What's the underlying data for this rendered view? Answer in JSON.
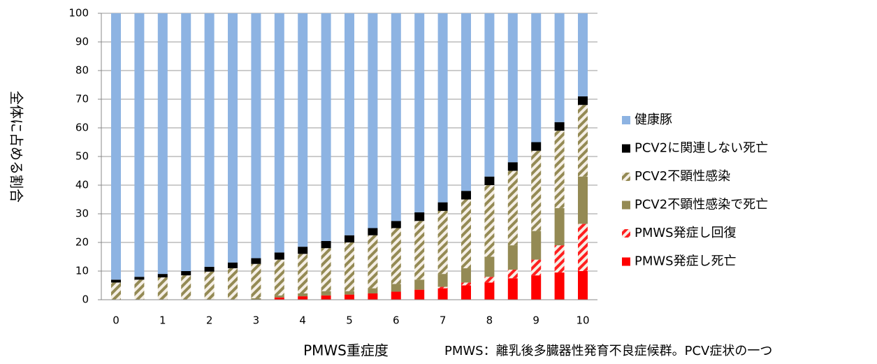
{
  "chart_data": {
    "type": "stacked_bar",
    "y_label": "全体に占める割合",
    "x_label": "PMWS重症度",
    "note": "PMWS：離乳後多臓器性発育不良症候群。PCV症状の一つ",
    "categories": [
      "0",
      null,
      "1",
      null,
      "2",
      null,
      "3",
      null,
      "4",
      null,
      "5",
      null,
      "6",
      null,
      "7",
      null,
      "8",
      null,
      "9",
      null,
      "10"
    ],
    "series": [
      {
        "name": "PMWS発症し死亡",
        "color": "#ff0000",
        "hatch": false,
        "values": [
          0,
          0,
          0,
          0,
          0,
          0,
          0,
          0.8,
          1.2,
          1.5,
          1.8,
          2.2,
          2.8,
          3.5,
          4,
          5,
          6,
          7.5,
          8.5,
          9.5,
          10
        ]
      },
      {
        "name": "PMWS発症し回復",
        "color": "#ff2020",
        "hatch": true,
        "values": [
          0,
          0,
          0,
          0,
          0,
          0,
          0,
          0,
          0,
          0,
          0,
          0,
          0,
          0,
          0.5,
          1,
          2,
          3,
          5.5,
          9.5,
          16.5
        ]
      },
      {
        "name": "PCV2不顕性感染で死亡",
        "color": "#948a54",
        "hatch": false,
        "values": [
          0,
          0,
          0,
          0,
          0,
          0,
          0.5,
          0.7,
          1,
          1.5,
          1.2,
          1.8,
          2.7,
          3.5,
          4.5,
          5,
          7,
          8.5,
          10,
          13,
          16.5
        ]
      },
      {
        "name": "PCV2不顕性感染",
        "color": "#948a54",
        "hatch": true,
        "values": [
          6,
          7,
          7.8,
          8.5,
          9.8,
          11,
          12,
          12.5,
          13.8,
          15,
          17,
          18.5,
          19.5,
          20.5,
          22,
          24,
          25,
          26,
          28,
          27,
          25
        ]
      },
      {
        "name": "PCV2に関連しない死亡",
        "color": "#000000",
        "hatch": false,
        "values": [
          1,
          1,
          1.2,
          1.5,
          1.7,
          2,
          2,
          2.5,
          2.5,
          2.5,
          2.5,
          2.5,
          2.5,
          3,
          3,
          3,
          3,
          3,
          3,
          3,
          3
        ]
      },
      {
        "name": "健康豚",
        "color": "#8db3e2",
        "hatch": false,
        "values": [
          93,
          92,
          91,
          90,
          88.5,
          87,
          85.5,
          83.5,
          81.5,
          79.5,
          77.5,
          75,
          72.5,
          69.5,
          66,
          62,
          57,
          52,
          45,
          38,
          29
        ]
      }
    ],
    "ylim": [
      0,
      100
    ],
    "yticks": [
      0,
      10,
      20,
      30,
      40,
      50,
      60,
      70,
      80,
      90,
      100
    ],
    "grid": true
  }
}
